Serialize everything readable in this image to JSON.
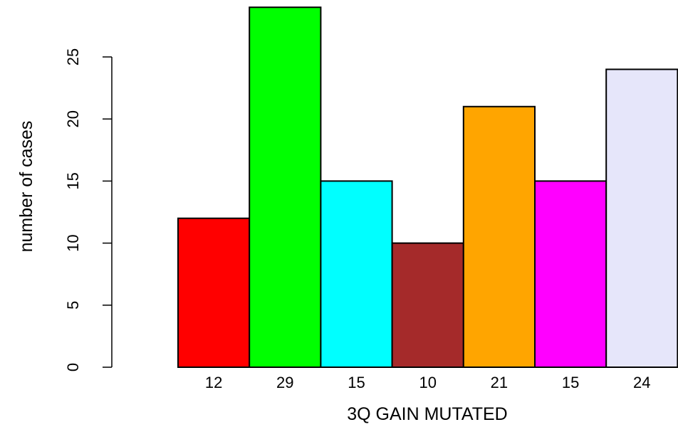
{
  "chart_data": {
    "type": "bar",
    "title": "",
    "xlabel": "3Q GAIN MUTATED",
    "ylabel": "number of cases",
    "categories": [
      "12",
      "29",
      "15",
      "10",
      "21",
      "15",
      "24"
    ],
    "values": [
      12,
      29,
      15,
      10,
      21,
      15,
      24
    ],
    "colors": [
      "#ff0000",
      "#00ff00",
      "#00ffff",
      "#a52a2a",
      "#ffa500",
      "#ff00ff",
      "#e6e6fa"
    ],
    "yticks": [
      0,
      5,
      10,
      15,
      20,
      25
    ],
    "ylim": [
      0,
      29
    ],
    "grid": false,
    "legend": "none"
  }
}
